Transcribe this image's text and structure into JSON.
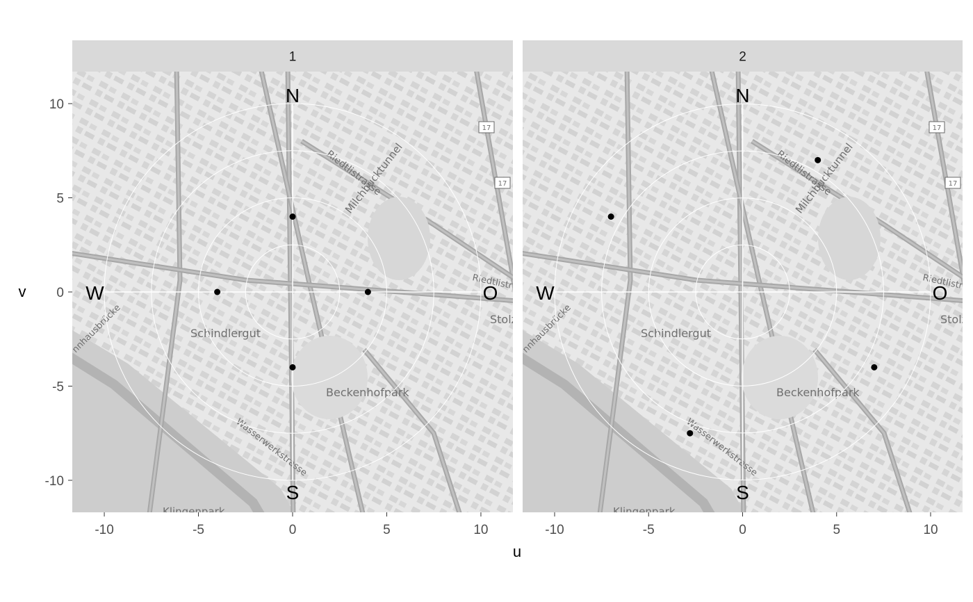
{
  "chart_data": {
    "type": "scatter",
    "xlabel": "u",
    "ylabel": "v",
    "xlim": [
      -11.7,
      11.7
    ],
    "ylim": [
      -11.7,
      11.7
    ],
    "x_ticks": [
      -10,
      -5,
      0,
      5,
      10
    ],
    "y_ticks": [
      10,
      5,
      0,
      -5,
      -10
    ],
    "x_tick_labels": [
      "-10",
      "-5",
      "0",
      "5",
      "10"
    ],
    "y_tick_labels": [
      "10",
      "5",
      "0",
      "-5",
      "-10"
    ],
    "grid": true,
    "guide_circle_radii": [
      2.5,
      5,
      7.5,
      10
    ],
    "compass": {
      "north": "N",
      "south": "S",
      "west": "W",
      "east": "O"
    },
    "background": "street map (greyscale)",
    "map_labels": [
      "Riedtlistrasse",
      "Milchbucktunnel",
      "Schindlergut",
      "Beckenhofpark",
      "Wasserwerkstrasse",
      "Klingenpark",
      "Stolz",
      "Riedtlistr",
      "nnhausbrücke",
      "17"
    ],
    "panels": [
      {
        "strip": "1",
        "points": [
          {
            "u": 0,
            "v": 4
          },
          {
            "u": -4,
            "v": 0
          },
          {
            "u": 4,
            "v": 0
          },
          {
            "u": 0,
            "v": -4
          }
        ]
      },
      {
        "strip": "2",
        "points": [
          {
            "u": -7,
            "v": 4
          },
          {
            "u": 4,
            "v": 7
          },
          {
            "u": 7,
            "v": -4
          },
          {
            "u": -2.8,
            "v": -7.5
          }
        ]
      }
    ],
    "colors": {
      "point": "#000000",
      "guide": "#ffffff",
      "strip": "#d9d9d9",
      "map_background": "#e6e6e6"
    }
  }
}
